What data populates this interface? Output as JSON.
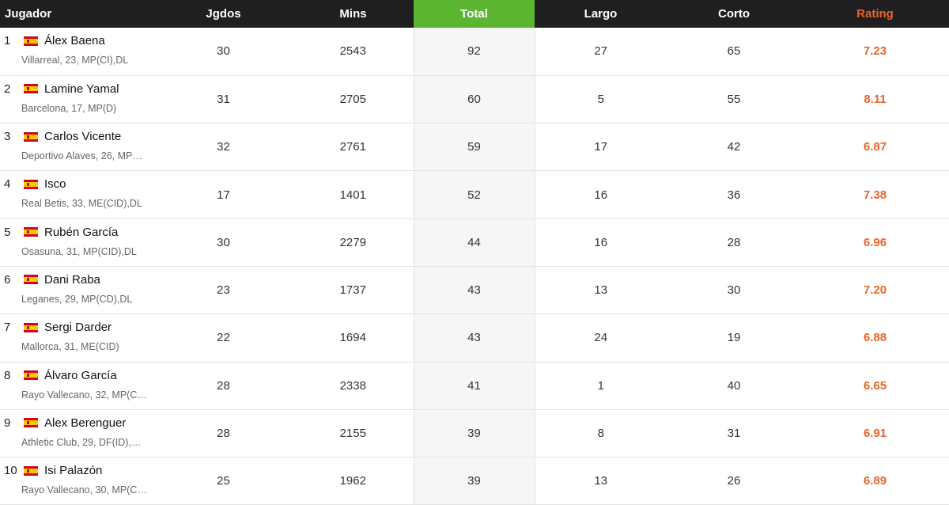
{
  "headers": {
    "player": "Jugador",
    "games": "Jgdos",
    "mins": "Mins",
    "total": "Total",
    "long": "Largo",
    "short": "Corto",
    "rating": "Rating"
  },
  "colors": {
    "header_bg": "#1f1f1f",
    "total_accent": "#5cb531",
    "rating_accent": "#e8642c"
  },
  "flag_icon": "spain-flag-icon",
  "rows": [
    {
      "rank": "1",
      "name": "Álex Baena",
      "meta": "Villarreal,  23, MP(CI),DL",
      "games": "30",
      "mins": "2543",
      "total": "92",
      "long": "27",
      "short": "65",
      "rating": "7.23"
    },
    {
      "rank": "2",
      "name": "Lamine Yamal",
      "meta": "Barcelona,  17, MP(D)",
      "games": "31",
      "mins": "2705",
      "total": "60",
      "long": "5",
      "short": "55",
      "rating": "8.11"
    },
    {
      "rank": "3",
      "name": "Carlos Vicente",
      "meta": "Deportivo Alaves,  26, MP…",
      "games": "32",
      "mins": "2761",
      "total": "59",
      "long": "17",
      "short": "42",
      "rating": "6.87"
    },
    {
      "rank": "4",
      "name": "Isco",
      "meta": "Real Betis,  33, ME(CID),DL",
      "games": "17",
      "mins": "1401",
      "total": "52",
      "long": "16",
      "short": "36",
      "rating": "7.38"
    },
    {
      "rank": "5",
      "name": "Rubén García",
      "meta": "Osasuna,  31, MP(CID),DL",
      "games": "30",
      "mins": "2279",
      "total": "44",
      "long": "16",
      "short": "28",
      "rating": "6.96"
    },
    {
      "rank": "6",
      "name": "Dani Raba",
      "meta": "Leganes,  29, MP(CD),DL",
      "games": "23",
      "mins": "1737",
      "total": "43",
      "long": "13",
      "short": "30",
      "rating": "7.20"
    },
    {
      "rank": "7",
      "name": "Sergi Darder",
      "meta": "Mallorca,  31, ME(CID)",
      "games": "22",
      "mins": "1694",
      "total": "43",
      "long": "24",
      "short": "19",
      "rating": "6.88"
    },
    {
      "rank": "8",
      "name": "Álvaro García",
      "meta": "Rayo Vallecano,  32, MP(C…",
      "games": "28",
      "mins": "2338",
      "total": "41",
      "long": "1",
      "short": "40",
      "rating": "6.65"
    },
    {
      "rank": "9",
      "name": "Alex Berenguer",
      "meta": "Athletic Club,  29, DF(ID),…",
      "games": "28",
      "mins": "2155",
      "total": "39",
      "long": "8",
      "short": "31",
      "rating": "6.91"
    },
    {
      "rank": "10",
      "name": "Isi Palazón",
      "meta": "Rayo Vallecano,  30, MP(C…",
      "games": "25",
      "mins": "1962",
      "total": "39",
      "long": "13",
      "short": "26",
      "rating": "6.89"
    }
  ]
}
